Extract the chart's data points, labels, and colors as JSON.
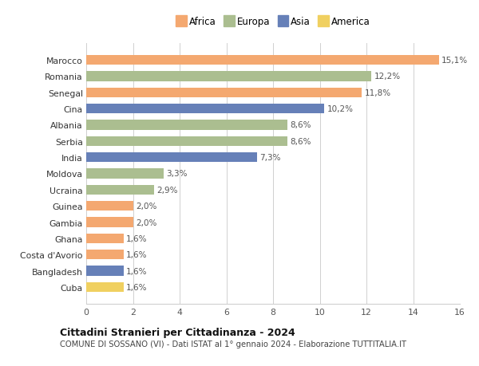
{
  "categories": [
    "Marocco",
    "Romania",
    "Senegal",
    "Cina",
    "Albania",
    "Serbia",
    "India",
    "Moldova",
    "Ucraina",
    "Guinea",
    "Gambia",
    "Ghana",
    "Costa d'Avorio",
    "Bangladesh",
    "Cuba"
  ],
  "values": [
    15.1,
    12.2,
    11.8,
    10.2,
    8.6,
    8.6,
    7.3,
    3.3,
    2.9,
    2.0,
    2.0,
    1.6,
    1.6,
    1.6,
    1.6
  ],
  "labels": [
    "15,1%",
    "12,2%",
    "11,8%",
    "10,2%",
    "8,6%",
    "8,6%",
    "7,3%",
    "3,3%",
    "2,9%",
    "2,0%",
    "2,0%",
    "1,6%",
    "1,6%",
    "1,6%",
    "1,6%"
  ],
  "continent": [
    "Africa",
    "Europa",
    "Africa",
    "Asia",
    "Europa",
    "Europa",
    "Asia",
    "Europa",
    "Europa",
    "Africa",
    "Africa",
    "Africa",
    "Africa",
    "Asia",
    "America"
  ],
  "colors": {
    "Africa": "#F4A870",
    "Europa": "#ABBE90",
    "Asia": "#6680B8",
    "America": "#F0D060"
  },
  "legend_order": [
    "Africa",
    "Europa",
    "Asia",
    "America"
  ],
  "xlim": [
    0,
    16
  ],
  "xticks": [
    0,
    2,
    4,
    6,
    8,
    10,
    12,
    14,
    16
  ],
  "title": "Cittadini Stranieri per Cittadinanza - 2024",
  "subtitle": "COMUNE DI SOSSANO (VI) - Dati ISTAT al 1° gennaio 2024 - Elaborazione TUTTITALIA.IT",
  "background_color": "#ffffff",
  "grid_color": "#d0d0d0",
  "bar_height": 0.6
}
